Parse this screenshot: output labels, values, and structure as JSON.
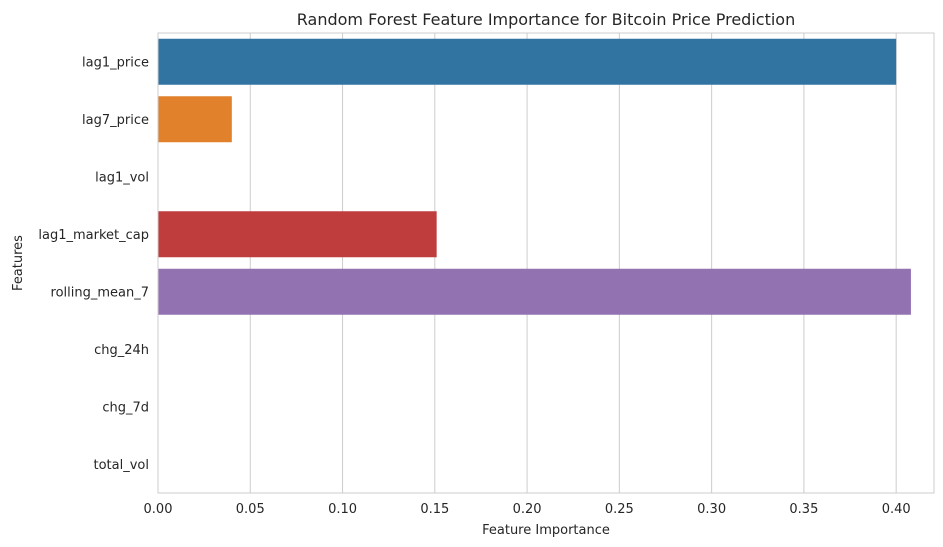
{
  "chart_data": {
    "type": "bar",
    "orientation": "horizontal",
    "title": "Random Forest Feature Importance for Bitcoin Price Prediction",
    "xlabel": "Feature Importance",
    "ylabel": "Features",
    "categories": [
      "lag1_price",
      "lag7_price",
      "lag1_vol",
      "lag1_market_cap",
      "rolling_mean_7",
      "chg_24h",
      "chg_7d",
      "total_vol"
    ],
    "values": [
      0.4,
      0.04,
      0.0,
      0.151,
      0.408,
      0.0,
      0.0,
      0.0
    ],
    "colors": [
      "#3274a1",
      "#e1812c",
      "#3a923a",
      "#c03d3e",
      "#9372b2",
      "#845b53",
      "#d684bd",
      "#7f7f7f"
    ],
    "xlim": [
      0,
      0.4205
    ],
    "xticks": [
      0.0,
      0.05,
      0.1,
      0.15,
      0.2,
      0.25,
      0.3,
      0.35,
      0.4
    ],
    "xtick_labels": [
      "0.00",
      "0.05",
      "0.10",
      "0.15",
      "0.20",
      "0.25",
      "0.30",
      "0.35",
      "0.40"
    ],
    "grid": true,
    "grid_axis": "x"
  }
}
